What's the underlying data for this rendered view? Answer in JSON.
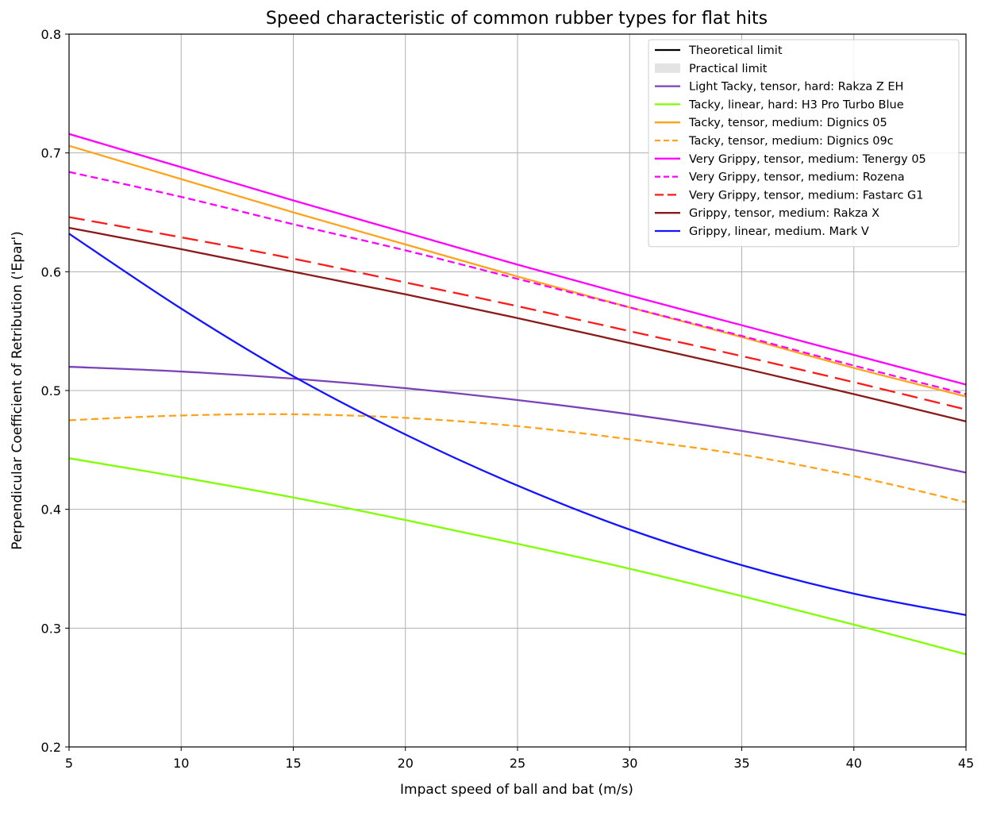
{
  "chart_data": {
    "type": "line",
    "title": "Speed characteristic of common rubber types for flat hits",
    "xlabel": "Impact speed of ball and bat (m/s)",
    "ylabel": "Perpendicular Coefficient of Retribution ('Epar')",
    "xlim": [
      5,
      45
    ],
    "ylim": [
      0.2,
      0.8
    ],
    "xticks": [
      5,
      10,
      15,
      20,
      25,
      30,
      35,
      40,
      45
    ],
    "xtick_labels": [
      "5",
      "10",
      "15",
      "20",
      "25",
      "30",
      "35",
      "40",
      "45"
    ],
    "yticks": [
      0.2,
      0.3,
      0.4,
      0.5,
      0.6,
      0.7,
      0.8
    ],
    "ytick_labels": [
      "0.2",
      "0.3",
      "0.4",
      "0.5",
      "0.6",
      "0.7",
      "0.8"
    ],
    "grid": true,
    "legend_position": "upper right",
    "legend": [
      {
        "label": "Theoretical limit",
        "color": "#000000",
        "style": "solid"
      },
      {
        "label": "Practical limit",
        "color": "#e3e3e3",
        "style": "patch"
      },
      {
        "label": "Light Tacky, tensor, hard: Rakza Z EH",
        "color": "#7a42b8",
        "style": "solid"
      },
      {
        "label": "Tacky, linear, hard: H3 Pro Turbo Blue",
        "color": "#7fff00",
        "style": "solid"
      },
      {
        "label": "Tacky, tensor, medium: Dignics 05",
        "color": "#ffa31a",
        "style": "solid"
      },
      {
        "label": "Tacky, tensor, medium: Dignics 09c",
        "color": "#ffa31a",
        "style": "dashed"
      },
      {
        "label": "Very Grippy, tensor, medium: Tenergy 05",
        "color": "#ff00ff",
        "style": "solid"
      },
      {
        "label": "Very Grippy, tensor, medium: Rozena",
        "color": "#ff00ff",
        "style": "dashed"
      },
      {
        "label": "Very Grippy, tensor, medium: Fastarc G1",
        "color": "#ff1a1a",
        "style": "longdash"
      },
      {
        "label": "Grippy, tensor, medium: Rakza X",
        "color": "#8b1a1a",
        "style": "solid"
      },
      {
        "label": "Grippy, linear, medium. Mark V",
        "color": "#1414ff",
        "style": "solid"
      }
    ],
    "x": [
      5,
      10,
      15,
      20,
      25,
      30,
      35,
      40,
      45
    ],
    "series": [
      {
        "name": "Light Tacky, tensor, hard: Rakza Z EH",
        "color": "#7a42b8",
        "style": "solid",
        "values": [
          0.52,
          0.516,
          0.51,
          0.502,
          0.492,
          0.48,
          0.466,
          0.45,
          0.431
        ]
      },
      {
        "name": "Tacky, linear, hard: H3 Pro Turbo Blue",
        "color": "#7fff00",
        "style": "solid",
        "values": [
          0.443,
          0.427,
          0.41,
          0.391,
          0.371,
          0.35,
          0.327,
          0.303,
          0.278
        ]
      },
      {
        "name": "Tacky, tensor, medium: Dignics 05",
        "color": "#ffa31a",
        "style": "solid",
        "values": [
          0.706,
          0.678,
          0.65,
          0.623,
          0.596,
          0.57,
          0.545,
          0.519,
          0.495
        ]
      },
      {
        "name": "Tacky, tensor, medium: Dignics 09c",
        "color": "#ffa31a",
        "style": "dashed",
        "values": [
          0.475,
          0.479,
          0.48,
          0.477,
          0.47,
          0.459,
          0.446,
          0.428,
          0.406
        ]
      },
      {
        "name": "Very Grippy, tensor, medium: Tenergy 05",
        "color": "#ff00ff",
        "style": "solid",
        "values": [
          0.716,
          0.688,
          0.66,
          0.633,
          0.606,
          0.58,
          0.555,
          0.53,
          0.505
        ]
      },
      {
        "name": "Very Grippy, tensor, medium: Rozena",
        "color": "#ff00ff",
        "style": "dashed",
        "values": [
          0.684,
          0.663,
          0.64,
          0.618,
          0.594,
          0.57,
          0.546,
          0.521,
          0.497
        ]
      },
      {
        "name": "Very Grippy, tensor, medium: Fastarc G1",
        "color": "#ff1a1a",
        "style": "longdash",
        "values": [
          0.646,
          0.629,
          0.611,
          0.591,
          0.571,
          0.55,
          0.529,
          0.507,
          0.484
        ]
      },
      {
        "name": "Grippy, tensor, medium: Rakza X",
        "color": "#8b1a1a",
        "style": "solid",
        "values": [
          0.637,
          0.619,
          0.6,
          0.581,
          0.561,
          0.54,
          0.519,
          0.497,
          0.474
        ]
      },
      {
        "name": "Grippy, linear, medium. Mark V",
        "color": "#1414ff",
        "style": "solid",
        "values": [
          0.632,
          0.569,
          0.512,
          0.463,
          0.42,
          0.383,
          0.353,
          0.329,
          0.311
        ]
      }
    ]
  }
}
